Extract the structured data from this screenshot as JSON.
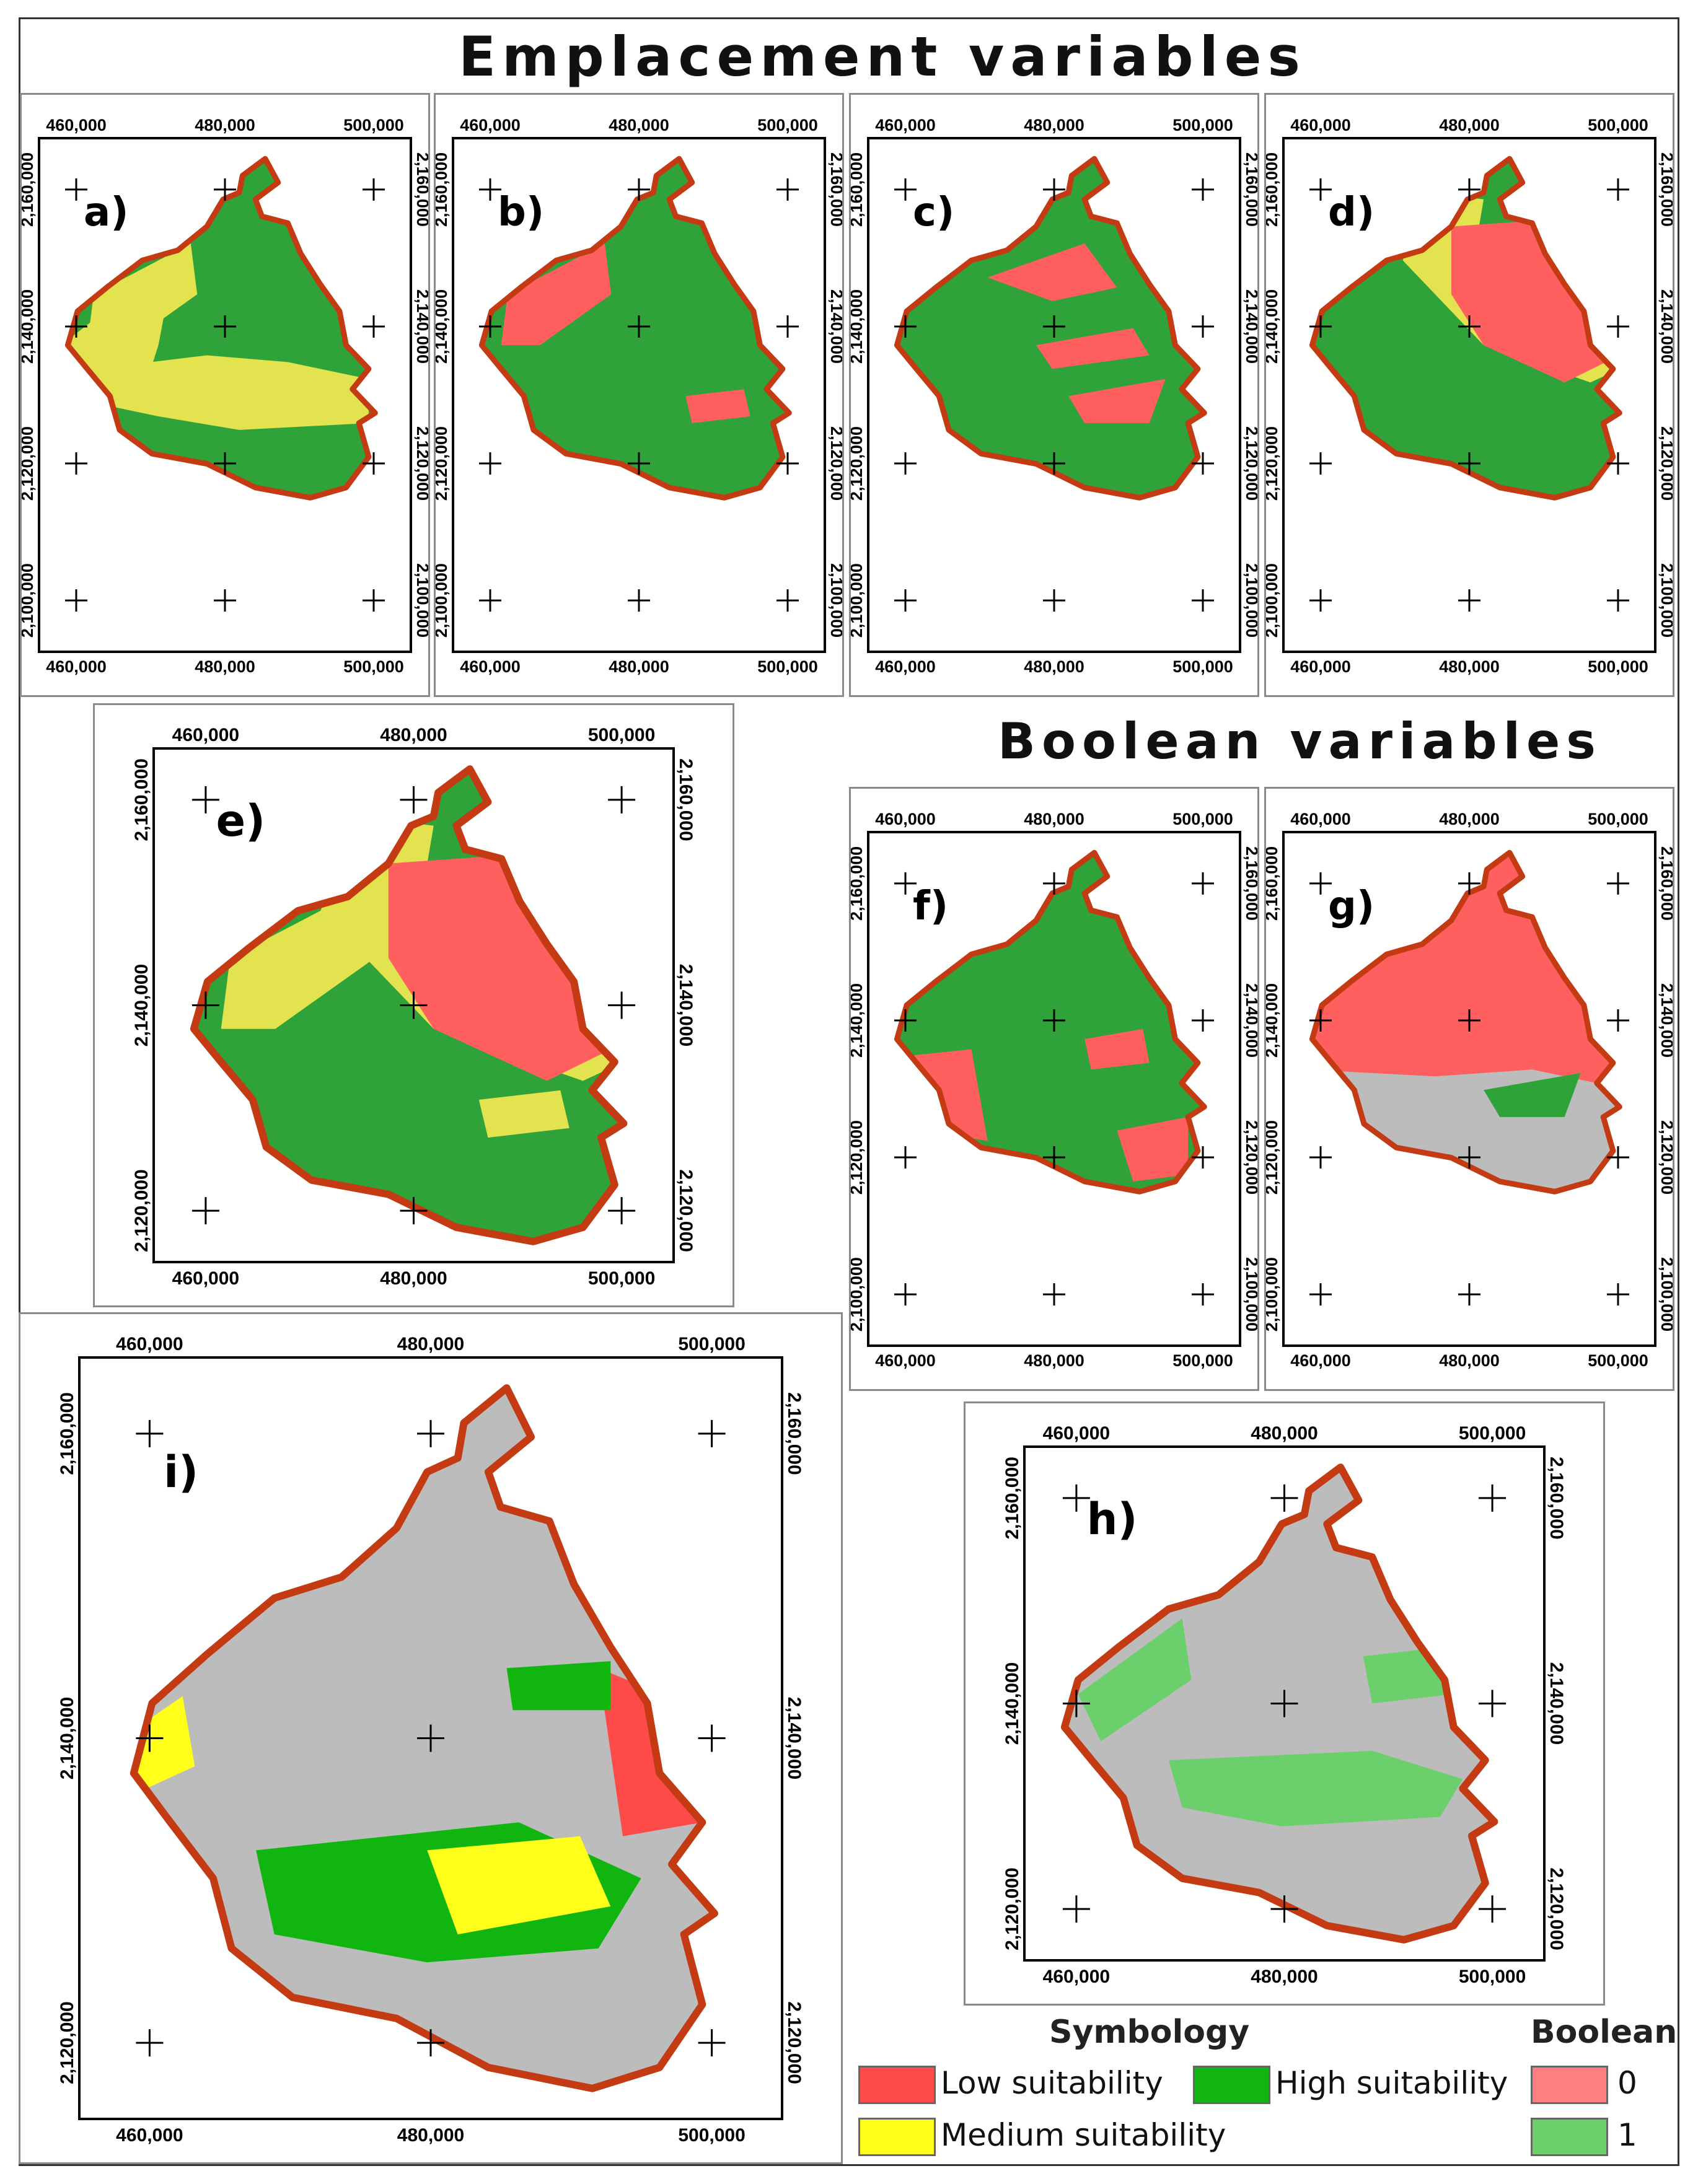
{
  "titles": {
    "emplacement": "Emplacement variables",
    "boolean": "Boolean variables"
  },
  "colors": {
    "low": "#ff4a4a",
    "medium": "#ffff1a",
    "high": "#10b510",
    "map_green": "#2fa33a",
    "map_red": "#ff5f5f",
    "map_yellow": "#e3e34f",
    "relief_grey": "#bcbcbc",
    "boundary": "#c43a12",
    "bool0": "#ff7f7f",
    "bool1": "#6bd06b"
  },
  "panels": [
    {
      "id": "a",
      "label": "a)",
      "x": [
        "460,000",
        "480,000",
        "500,000"
      ],
      "y": [
        "2,160,000",
        "2,140,000",
        "2,120,000",
        "2,100,000"
      ]
    },
    {
      "id": "b",
      "label": "b)",
      "x": [
        "460,000",
        "480,000",
        "500,000"
      ],
      "y": [
        "2,160,000",
        "2,140,000",
        "2,120,000",
        "2,100,000"
      ]
    },
    {
      "id": "c",
      "label": "c)",
      "x": [
        "460,000",
        "480,000",
        "500,000"
      ],
      "y": [
        "2,160,000",
        "2,140,000",
        "2,120,000",
        "2,100,000"
      ]
    },
    {
      "id": "d",
      "label": "d)",
      "x": [
        "460,000",
        "480,000",
        "500,000"
      ],
      "y": [
        "2,160,000",
        "2,140,000",
        "2,120,000",
        "2,100,000"
      ]
    },
    {
      "id": "e",
      "label": "e)",
      "x": [
        "460,000",
        "480,000",
        "500,000"
      ],
      "y": [
        "2,160,000",
        "2,140,000",
        "2,120,000"
      ]
    },
    {
      "id": "f",
      "label": "f)",
      "x": [
        "460,000",
        "480,000",
        "500,000"
      ],
      "y": [
        "2,160,000",
        "2,140,000",
        "2,120,000",
        "2,100,000"
      ]
    },
    {
      "id": "g",
      "label": "g)",
      "x": [
        "460,000",
        "480,000",
        "500,000"
      ],
      "y": [
        "2,160,000",
        "2,140,000",
        "2,120,000",
        "2,100,000"
      ]
    },
    {
      "id": "h",
      "label": "h)",
      "x": [
        "460,000",
        "480,000",
        "500,000"
      ],
      "y": [
        "2,160,000",
        "2,140,000",
        "2,120,000"
      ]
    },
    {
      "id": "i",
      "label": "i)",
      "x": [
        "460,000",
        "480,000",
        "500,000"
      ],
      "y": [
        "2,160,000",
        "2,140,000",
        "2,120,000"
      ]
    }
  ],
  "legend": {
    "symbology_title": "Symbology",
    "boolean_title": "Boolean",
    "low": "Low suitability",
    "medium": "Medium suitability",
    "high": "High suitability",
    "bool0": "0",
    "bool1": "1"
  }
}
